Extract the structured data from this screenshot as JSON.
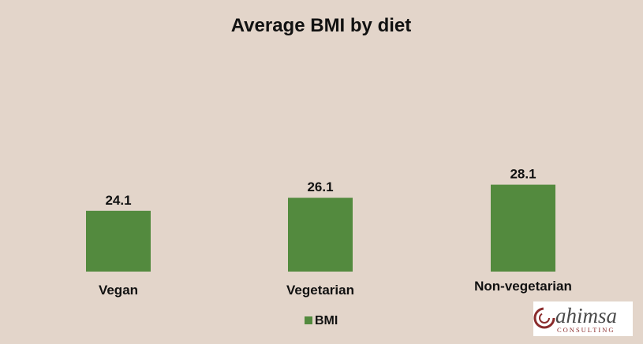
{
  "chart_data": {
    "type": "bar",
    "title": "Average BMI by diet",
    "categories": [
      "Vegan",
      "Vegetarian",
      "Non-vegetarian"
    ],
    "series": [
      {
        "name": "BMI",
        "values": [
          24.1,
          26.1,
          28.1
        ]
      }
    ],
    "data_labels": [
      "24.1",
      "26.1",
      "28.1"
    ],
    "legend": {
      "position": "bottom",
      "entries": [
        "BMI"
      ]
    },
    "grid": false,
    "colors": {
      "bar": "#538a3e",
      "background": "#e3d5ca"
    }
  },
  "logo": {
    "word": "ahimsa",
    "subtitle": "CONSULTING"
  }
}
